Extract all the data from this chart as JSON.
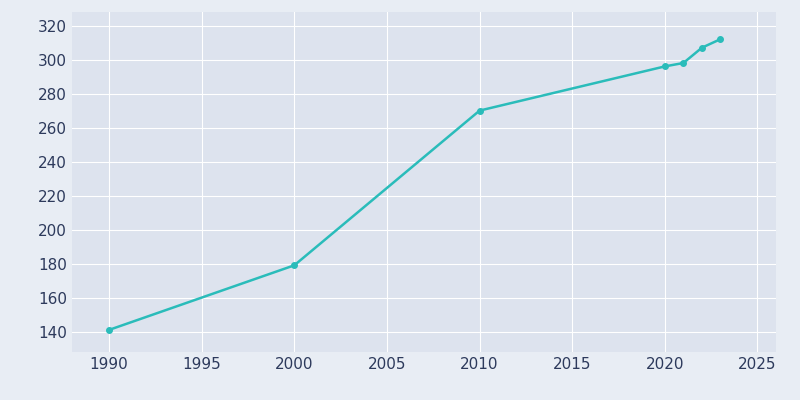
{
  "years": [
    1990,
    2000,
    2010,
    2020,
    2021,
    2022,
    2023
  ],
  "population": [
    141,
    179,
    270,
    296,
    298,
    307,
    312
  ],
  "line_color": "#2abcba",
  "marker_color": "#2abcba",
  "bg_color": "#e8edf4",
  "plot_bg_color": "#dde3ee",
  "xlim": [
    1988,
    2026
  ],
  "ylim": [
    128,
    328
  ],
  "xticks": [
    1990,
    1995,
    2000,
    2005,
    2010,
    2015,
    2020,
    2025
  ],
  "yticks": [
    140,
    160,
    180,
    200,
    220,
    240,
    260,
    280,
    300,
    320
  ],
  "grid_color": "#ffffff",
  "tick_color": "#2d3a5c",
  "linewidth": 1.8,
  "markersize": 4
}
